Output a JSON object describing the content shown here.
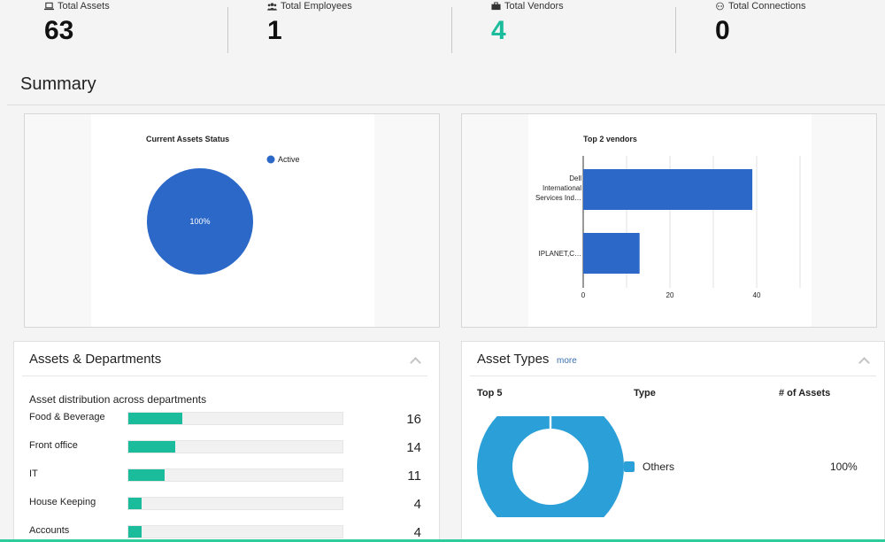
{
  "stats": [
    {
      "label": "Total Assets",
      "value": "63",
      "icon": "laptop-icon"
    },
    {
      "label": "Total Employees",
      "value": "1",
      "icon": "users-icon"
    },
    {
      "label": "Total Vendors",
      "value": "4",
      "icon": "briefcase-icon"
    },
    {
      "label": "Total Connections",
      "value": "0",
      "icon": "connection-icon"
    }
  ],
  "summary": {
    "title": "Summary"
  },
  "charts": {
    "status": {
      "title": "Current Assets Status",
      "legend": "Active",
      "slice_label": "100%"
    },
    "vendors": {
      "title": "Top 2 vendors",
      "bar1_label_l1": "Dell",
      "bar1_label_l2": "International",
      "bar1_label_l3": "Services Ind…",
      "bar2_label": "IPLANET,C…",
      "tick0": "0",
      "tick1": "20",
      "tick2": "40"
    }
  },
  "chart_data": [
    {
      "type": "pie",
      "title": "Current Assets Status",
      "labels": [
        "Active"
      ],
      "values": [
        100
      ],
      "legend": "top-right",
      "colors": [
        "#2b68c8"
      ]
    },
    {
      "type": "bar",
      "orientation": "horizontal",
      "title": "Top 2 vendors",
      "categories": [
        "Dell International Services Ind…",
        "IPLANET,C…"
      ],
      "values": [
        39,
        13
      ],
      "xlim": [
        0,
        50
      ],
      "xticks": [
        0,
        20,
        40
      ],
      "grid": true,
      "colors": [
        "#2b68c8"
      ]
    }
  ],
  "departments": {
    "title": "Assets & Departments",
    "subtitle": "Asset distribution across departments",
    "rows": [
      {
        "name": "Food & Beverage",
        "count": "16",
        "fraction": 0.25
      },
      {
        "name": "Front office",
        "count": "14",
        "fraction": 0.22
      },
      {
        "name": "IT",
        "count": "11",
        "fraction": 0.17
      },
      {
        "name": "House Keeping",
        "count": "4",
        "fraction": 0.06
      },
      {
        "name": "Accounts",
        "count": "4",
        "fraction": 0.06
      }
    ]
  },
  "asset_types": {
    "title": "Asset Types",
    "more": "more",
    "col_top": "Top 5",
    "col_type": "Type",
    "col_count": "# of Assets",
    "rows": [
      {
        "type": "Others",
        "pct": "100%",
        "color": "#2a9fd8"
      }
    ]
  }
}
